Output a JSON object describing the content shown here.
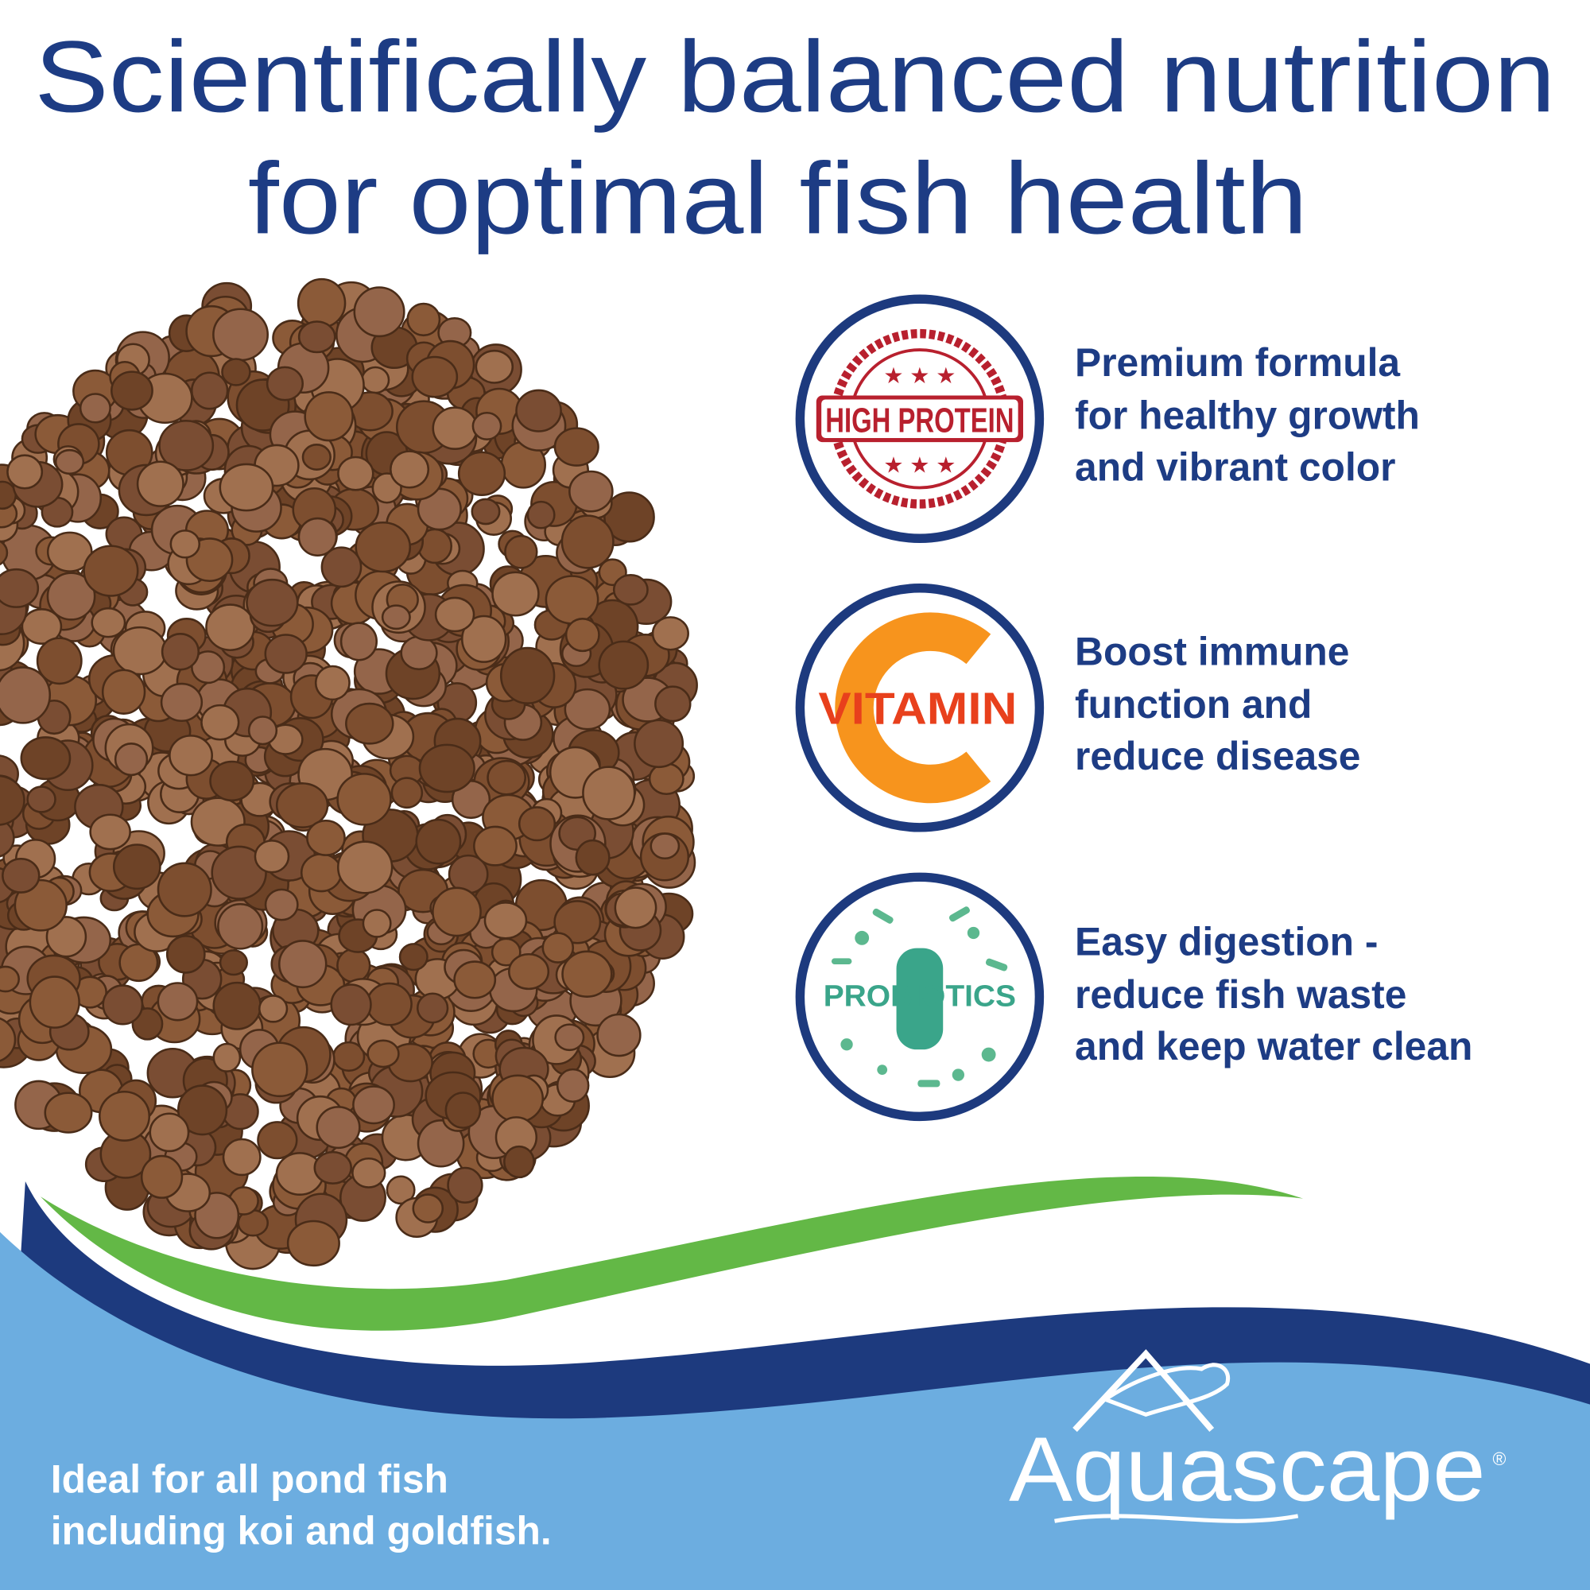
{
  "header": {
    "title": [
      "Scientifically balanced nutrition",
      "for optimal fish health"
    ]
  },
  "features": [
    {
      "badge": "HIGH PROTEIN",
      "lines": [
        "Premium formula",
        "for healthy growth",
        "and vibrant color"
      ]
    },
    {
      "badge": "VITAMIN",
      "lines": [
        "Boost immune",
        "function and",
        "reduce disease"
      ]
    },
    {
      "badge": "PROBIOTICS",
      "lines": [
        "Easy digestion -",
        "reduce fish waste",
        "and keep water clean"
      ]
    }
  ],
  "footer": {
    "lines": [
      "Ideal for all pond fish",
      "including koi and goldfish."
    ]
  },
  "logo": {
    "name": "Aquascape",
    "mark": "®"
  }
}
